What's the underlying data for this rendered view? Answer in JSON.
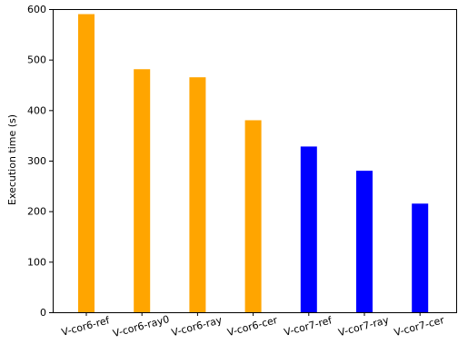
{
  "chart_data": {
    "type": "bar",
    "title": "",
    "xlabel": "",
    "ylabel": "Execution time (s)",
    "ylim": [
      0,
      600
    ],
    "yticks": [
      0,
      100,
      200,
      300,
      400,
      500,
      600
    ],
    "categories": [
      "V-cor6-ref",
      "V-cor6-ray0",
      "V-cor6-ray",
      "V-cor6-cer",
      "V-cor7-ref",
      "V-cor7-ray",
      "V-cor7-cer"
    ],
    "values": [
      590,
      481,
      465,
      380,
      328,
      280,
      215
    ],
    "bar_colors": [
      "#ffa500",
      "#ffa500",
      "#ffa500",
      "#ffa500",
      "#0000ff",
      "#0000ff",
      "#0000ff"
    ],
    "tick_label_rotation_deg": 15,
    "grid": false
  }
}
